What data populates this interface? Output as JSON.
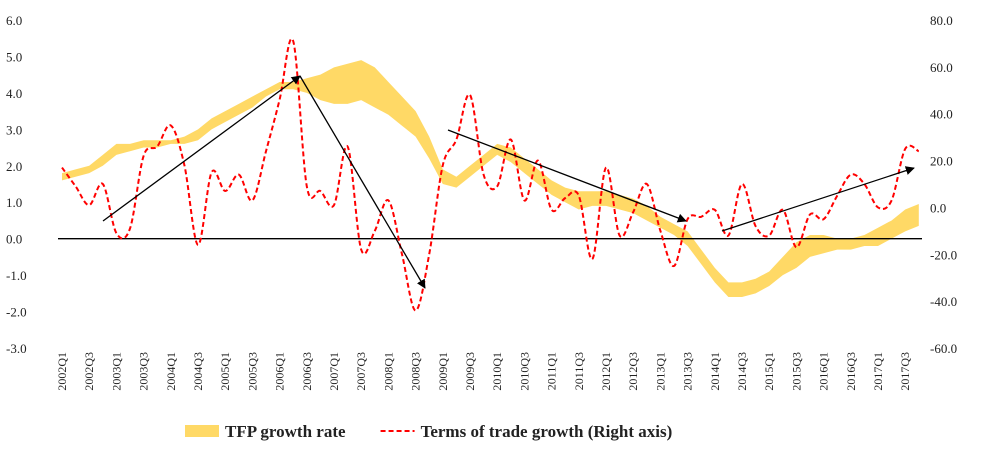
{
  "chart_data": {
    "type": "band-line",
    "categories": [
      "2002Q1",
      null,
      "2002Q3",
      null,
      "2003Q1",
      null,
      "2003Q3",
      null,
      "2004Q1",
      null,
      "2004Q3",
      null,
      "2005Q1",
      null,
      "2005Q3",
      null,
      "2006Q1",
      null,
      "2006Q3",
      null,
      "2007Q1",
      null,
      "2007Q3",
      null,
      "2008Q1",
      null,
      "2008Q3",
      null,
      "2009Q1",
      null,
      "2009Q3",
      null,
      "2010Q1",
      null,
      "2010Q3",
      null,
      "2011Q1",
      null,
      "2011Q3",
      null,
      "2012Q1",
      null,
      "2012Q3",
      null,
      "2013Q1",
      null,
      "2013Q3",
      null,
      "2014Q1",
      null,
      "2014Q3",
      null,
      "2015Q1",
      null,
      "2015Q3",
      null,
      "2016Q1",
      null,
      "2016Q3",
      null,
      "2017Q1",
      null,
      "2017Q3",
      null
    ],
    "series": [
      {
        "name": "TFP growth rate",
        "color": "#FFD966",
        "kind": "band",
        "upper": [
          1.8,
          1.9,
          2.0,
          2.3,
          2.6,
          2.6,
          2.7,
          2.7,
          2.7,
          2.8,
          3.0,
          3.3,
          3.5,
          3.7,
          3.9,
          4.1,
          4.3,
          4.3,
          4.4,
          4.5,
          4.7,
          4.8,
          4.9,
          4.7,
          4.3,
          3.9,
          3.5,
          2.8,
          1.9,
          1.7,
          2.0,
          2.3,
          2.6,
          2.5,
          2.2,
          1.9,
          1.6,
          1.4,
          1.3,
          1.3,
          1.3,
          1.2,
          1.1,
          0.9,
          0.6,
          0.4,
          0.2,
          -0.3,
          -0.8,
          -1.2,
          -1.2,
          -1.1,
          -0.9,
          -0.5,
          -0.1,
          0.1,
          0.1,
          0.0,
          0.0,
          0.1,
          0.3,
          0.5,
          0.8,
          0.95
        ],
        "lower": [
          1.6,
          1.7,
          1.8,
          2.0,
          2.3,
          2.4,
          2.5,
          2.5,
          2.6,
          2.6,
          2.7,
          3.0,
          3.2,
          3.4,
          3.6,
          3.9,
          4.1,
          4.1,
          4.0,
          3.8,
          3.7,
          3.7,
          3.8,
          3.6,
          3.4,
          3.1,
          2.8,
          2.2,
          1.5,
          1.4,
          1.7,
          2.0,
          2.3,
          2.1,
          1.8,
          1.5,
          1.2,
          1.0,
          0.8,
          0.9,
          0.9,
          0.8,
          0.7,
          0.5,
          0.3,
          0.1,
          -0.2,
          -0.7,
          -1.2,
          -1.6,
          -1.6,
          -1.5,
          -1.3,
          -1.0,
          -0.8,
          -0.5,
          -0.4,
          -0.3,
          -0.3,
          -0.2,
          -0.2,
          0.0,
          0.2,
          0.35
        ]
      },
      {
        "name": "Terms of trade growth (Right axis)",
        "color": "#FF0000",
        "kind": "line",
        "dashed": true,
        "axis": "y2",
        "values": [
          17,
          9,
          1,
          10,
          -11,
          -9,
          22,
          26,
          35,
          18,
          -16,
          15,
          7,
          14,
          3,
          24,
          46,
          71,
          9,
          7,
          1,
          26,
          -18,
          -10,
          3,
          -20,
          -44,
          -20,
          18,
          29,
          48,
          14,
          9,
          29,
          3,
          20,
          -1,
          4,
          5,
          -22,
          17,
          -12,
          -2,
          10,
          -10,
          -25,
          -5,
          -4,
          -1,
          -12,
          10,
          -8,
          -12,
          -1,
          -17,
          -3,
          -5,
          5,
          14,
          10,
          0,
          3,
          25,
          24
        ]
      }
    ],
    "ylim": [
      -3,
      6
    ],
    "yticks": [
      {
        "value": -3,
        "label": "-3.0"
      },
      {
        "value": -2,
        "label": "-2.0"
      },
      {
        "value": -1,
        "label": "-1.0"
      },
      {
        "value": 0,
        "label": "0.0"
      },
      {
        "value": 1,
        "label": "1.0"
      },
      {
        "value": 2,
        "label": "2.0"
      },
      {
        "value": 3,
        "label": "3.0"
      },
      {
        "value": 4,
        "label": "4.0"
      },
      {
        "value": 5,
        "label": "5.0"
      },
      {
        "value": 6,
        "label": "6.0"
      }
    ],
    "y2lim": [
      -60,
      80
    ],
    "y2ticks": [
      {
        "value": -60,
        "label": "-60.0"
      },
      {
        "value": -40,
        "label": "-40.0"
      },
      {
        "value": -20,
        "label": "-20.0"
      },
      {
        "value": 0,
        "label": "0.0"
      },
      {
        "value": 20,
        "label": "20.0"
      },
      {
        "value": 40,
        "label": "40.0"
      },
      {
        "value": 60,
        "label": "60.0"
      },
      {
        "value": 80,
        "label": "80.0"
      }
    ],
    "zero_line": true,
    "legend": "bottom"
  }
}
